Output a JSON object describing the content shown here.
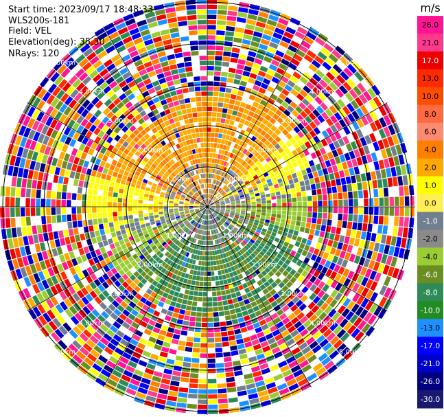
{
  "header": {
    "start_time": "Start time: 2023/09/17 18:48:33",
    "instrument": "WLS200s-181",
    "field": "Field: VEL",
    "elevation": "Elevation(deg): 35.30",
    "nrays": "NRays: 120"
  },
  "chart_data": {
    "type": "heatmap",
    "subtype": "polar-ppi",
    "field": "VEL",
    "n_rays": 120,
    "ring_labels": [
      "1.00km",
      "2.00km",
      "3.00km",
      "4.00km",
      "5.00km"
    ],
    "ring_ranges_km": [
      1,
      2,
      3,
      4,
      5
    ],
    "max_range_km": 5,
    "colorbar": {
      "unit": "m/s",
      "ticks": [
        "26.0",
        "21.0",
        "17.0",
        "13.0",
        "10.0",
        "8.0",
        "6.0",
        "4.0",
        "2.0",
        "1.0",
        "0.0",
        "-1.0",
        "-2.0",
        "-4.0",
        "-6.0",
        "-8.0",
        "-10.0",
        "-13.0",
        "-17.0",
        "-21.0",
        "-26.0",
        "-30.0"
      ],
      "colors": [
        "#ff1493",
        "#ff3a8c",
        "#ee0000",
        "#ff2a00",
        "#ff4d00",
        "#ff6a40",
        "#ff8a70",
        "#ff8000",
        "#ffaa00",
        "#ffff00",
        "#ffee55",
        "#708090",
        "#8a8a8a",
        "#9acd32",
        "#6b8e23",
        "#2e8b57",
        "#228b22",
        "#1e90ff",
        "#0000ff",
        "#0000cd",
        "#000080",
        "#191970"
      ]
    }
  }
}
